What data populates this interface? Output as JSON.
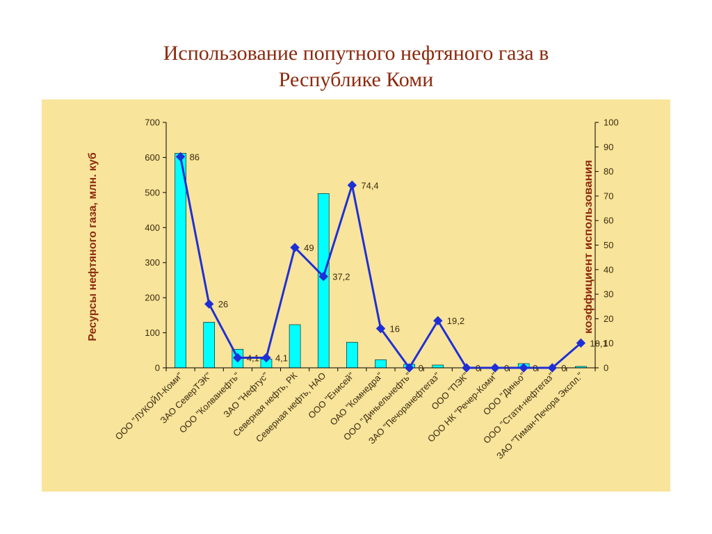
{
  "slide": {
    "title_line1": "Использование попутного нефтяного газа в",
    "title_line2": "Республике Коми"
  },
  "colors": {
    "background": "#f8e49a",
    "title": "#8b2a0e",
    "axis_title": "#8b2a0e",
    "bars": "#00ffff",
    "bar_outline": "#000000",
    "line": "#1f2fd6",
    "tick_text": "#3a2a10"
  },
  "chart_data": {
    "type": "bar+line",
    "title": "",
    "categories": [
      "ООО \"ЛУКОЙЛ-Коми\"",
      "ЗАО СеверТЭК\"",
      "ООО \"Колванефть\"",
      "ЗАО \"Нефтус\"",
      "Северная нефть, РК",
      "Северная нефть, НАО",
      "ООО \"Енисей\"",
      "ОАО \"Комнедра\"",
      "ООО \"Диньельнефть\"",
      "ЗАО \"Печоранефтегаз\"",
      "ООО \"ПЭК\"",
      "ООО НК \"Речер-Коми\"",
      "ООО \"Диньо\"",
      "ООО \"Стати-нефтегаз\"",
      "ЗАО \"Тиман-Печора Экспл.\""
    ],
    "series": [
      {
        "type": "bar",
        "axis": "left",
        "values": [
          612,
          130,
          53,
          25,
          123,
          497,
          73,
          23,
          10,
          8,
          0,
          0,
          12,
          0,
          4
        ]
      },
      {
        "type": "line",
        "axis": "right",
        "values": [
          86,
          26,
          4.1,
          4.1,
          49,
          37.2,
          74.4,
          16,
          0,
          19.2,
          0,
          0,
          0,
          0,
          10.1
        ],
        "data_labels": [
          "86",
          "26",
          "4,1",
          "4,1",
          "49",
          "37,2",
          "74,4",
          "16",
          "0",
          "19,2",
          "0",
          "0",
          "0",
          "0",
          "10,1"
        ]
      }
    ],
    "ylabel": "Ресурсы нефтяного газа, млн. куб",
    "y2label": "коэффициент использования",
    "ylim": [
      0,
      700
    ],
    "y2lim": [
      0,
      100
    ],
    "yticks": [
      "0",
      "100",
      "200",
      "300",
      "400",
      "500",
      "600",
      "700"
    ],
    "y2ticks": [
      "0",
      "10",
      "20",
      "30",
      "40",
      "50",
      "60",
      "70",
      "80",
      "90",
      "100"
    ],
    "grid": false,
    "legend": "none"
  }
}
